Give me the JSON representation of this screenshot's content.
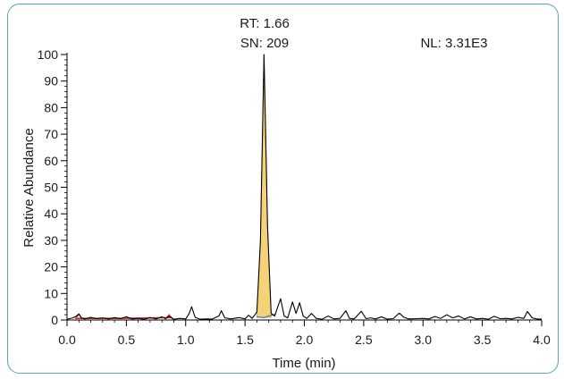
{
  "chart_data": {
    "type": "line",
    "title": "",
    "xlabel": "Time (min)",
    "ylabel": "Relative Abundance",
    "xlim": [
      0.0,
      4.0
    ],
    "ylim": [
      0,
      100
    ],
    "x_ticks": [
      "0.0",
      "0.5",
      "1.0",
      "1.5",
      "2.0",
      "2.5",
      "3.0",
      "3.5",
      "4.0"
    ],
    "y_ticks": [
      "0",
      "10",
      "20",
      "30",
      "40",
      "50",
      "60",
      "70",
      "80",
      "90",
      "100"
    ],
    "annotations": {
      "rt": "RT: 1.66",
      "sn": "SN: 209",
      "nl": "NL: 3.31E3"
    },
    "colors": {
      "trace": "#000000",
      "peak_fill": "#f5d27a",
      "peak_edge": "#c89a2a",
      "red_baseline": "#d9302a",
      "blue_baseline": "#4a78b0",
      "frame": "#5aa0c8"
    },
    "series": [
      {
        "x": [
          0.0,
          0.05,
          0.08,
          0.1,
          0.12,
          0.15,
          0.2,
          0.25,
          0.3,
          0.35,
          0.4,
          0.45,
          0.5,
          0.55,
          0.6,
          0.65,
          0.7,
          0.75,
          0.8,
          0.83,
          0.86,
          0.9,
          0.95,
          1.0,
          1.03,
          1.05,
          1.08,
          1.12,
          1.18,
          1.22,
          1.28,
          1.3,
          1.33,
          1.38,
          1.45,
          1.5,
          1.53,
          1.56,
          1.6,
          1.63,
          1.66,
          1.69,
          1.72,
          1.75,
          1.78,
          1.8,
          1.83,
          1.86,
          1.9,
          1.93,
          1.96,
          1.99,
          2.02,
          2.06,
          2.1,
          2.15,
          2.2,
          2.25,
          2.3,
          2.35,
          2.38,
          2.42,
          2.48,
          2.52,
          2.56,
          2.6,
          2.65,
          2.7,
          2.75,
          2.8,
          2.84,
          2.88,
          2.95,
          3.0,
          3.05,
          3.1,
          3.15,
          3.2,
          3.25,
          3.3,
          3.35,
          3.4,
          3.45,
          3.5,
          3.55,
          3.6,
          3.65,
          3.7,
          3.75,
          3.8,
          3.85,
          3.88,
          3.92,
          3.96,
          4.0
        ],
        "y": [
          0.3,
          0.8,
          1.5,
          2.3,
          0.8,
          0.4,
          1.0,
          0.5,
          0.8,
          0.4,
          0.9,
          0.5,
          1.2,
          0.4,
          0.6,
          0.3,
          0.9,
          0.4,
          1.2,
          0.5,
          1.4,
          0.3,
          0.6,
          0.4,
          2.5,
          5.0,
          1.0,
          0.3,
          0.4,
          0.3,
          1.5,
          3.5,
          0.8,
          0.4,
          0.9,
          0.4,
          1.8,
          0.6,
          3.0,
          30.0,
          100.0,
          35.0,
          2.5,
          1.5,
          5.5,
          8.0,
          1.5,
          0.8,
          6.8,
          2.5,
          6.5,
          1.5,
          0.6,
          2.5,
          0.6,
          0.3,
          1.5,
          0.4,
          0.6,
          3.5,
          0.6,
          0.4,
          3.3,
          0.5,
          0.8,
          0.4,
          1.2,
          0.3,
          0.5,
          2.6,
          1.0,
          0.4,
          0.5,
          0.6,
          0.4,
          1.3,
          0.6,
          2.0,
          0.8,
          1.5,
          0.4,
          1.2,
          0.4,
          0.6,
          0.3,
          1.4,
          0.5,
          0.6,
          0.4,
          1.0,
          0.6,
          3.2,
          0.8,
          0.4,
          0.3
        ]
      }
    ]
  }
}
